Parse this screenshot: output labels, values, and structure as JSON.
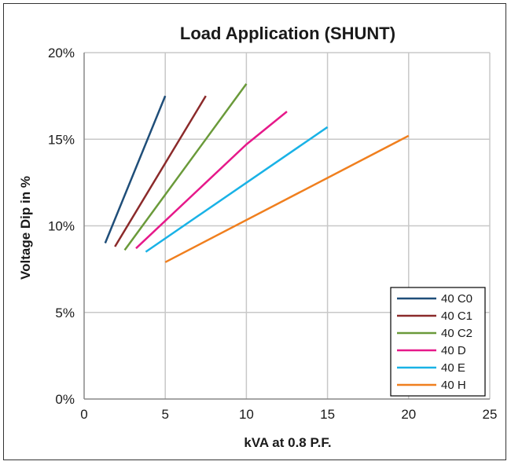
{
  "chart_data": {
    "type": "line",
    "title": "Load Application (SHUNT)",
    "xlabel": "kVA at 0.8 P.F.",
    "ylabel": "Voltage Dip in %",
    "xlim": [
      0,
      25
    ],
    "ylim": [
      0,
      20
    ],
    "x_ticks": [
      "0",
      "5",
      "10",
      "15",
      "20",
      "25"
    ],
    "y_ticks": [
      "0%",
      "5%",
      "10%",
      "15%",
      "20%"
    ],
    "grid": true,
    "legend_position": "bottom-right",
    "series": [
      {
        "name": "40 C0",
        "color": "#1f4e79",
        "x": [
          1.3,
          5.0
        ],
        "y": [
          9.0,
          17.5
        ]
      },
      {
        "name": "40 C1",
        "color": "#8b2a2a",
        "x": [
          1.9,
          7.5
        ],
        "y": [
          8.8,
          17.5
        ]
      },
      {
        "name": "40 C2",
        "color": "#6a9a3a",
        "x": [
          2.5,
          10.0
        ],
        "y": [
          8.6,
          18.2
        ]
      },
      {
        "name": "40 D",
        "color": "#e6198a",
        "x": [
          3.2,
          10.0,
          12.5
        ],
        "y": [
          8.7,
          14.7,
          16.6
        ]
      },
      {
        "name": "40 E",
        "color": "#19b2e6",
        "x": [
          3.8,
          15.0
        ],
        "y": [
          8.5,
          15.7
        ]
      },
      {
        "name": "40 H",
        "color": "#f07f1e",
        "x": [
          5.0,
          20.0
        ],
        "y": [
          7.9,
          15.2
        ]
      }
    ]
  }
}
